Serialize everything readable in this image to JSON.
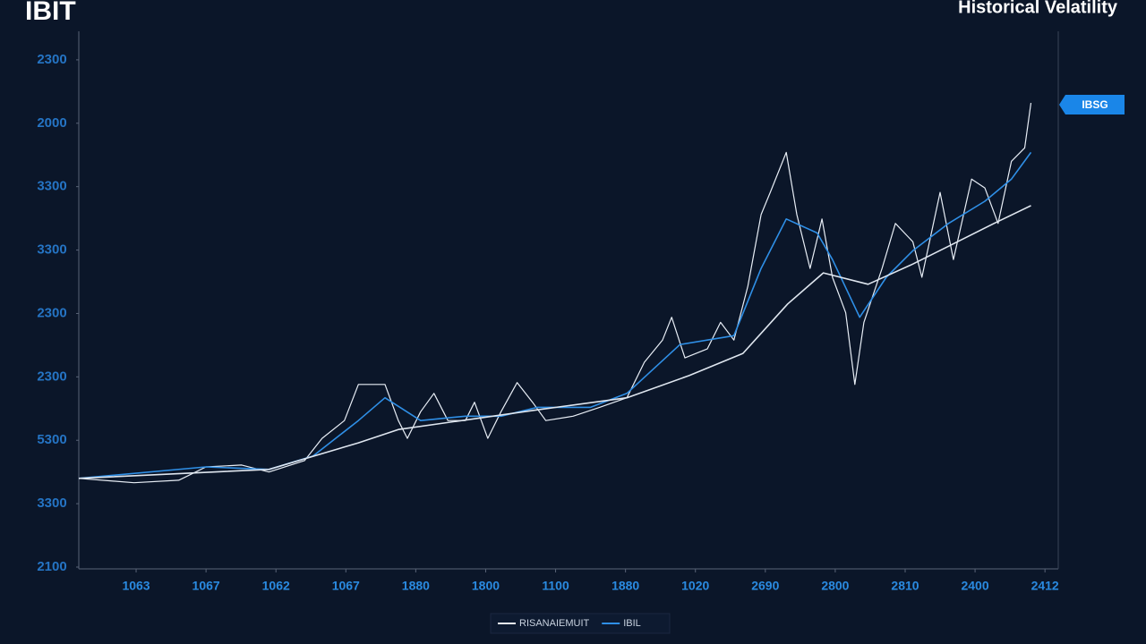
{
  "chart_data": {
    "type": "line",
    "title": "IBIT",
    "subtitle": "Historical Velatility",
    "annotation": "IBSG",
    "xlim": [
      0.18,
      14.19
    ],
    "xticks": [
      {
        "value": 1,
        "label": "1063"
      },
      {
        "value": 2,
        "label": "1067"
      },
      {
        "value": 3,
        "label": "1062"
      },
      {
        "value": 4,
        "label": "1067"
      },
      {
        "value": 5,
        "label": "1880"
      },
      {
        "value": 6,
        "label": "1800"
      },
      {
        "value": 7,
        "label": "1100"
      },
      {
        "value": 8,
        "label": "1880"
      },
      {
        "value": 9,
        "label": "1020"
      },
      {
        "value": 10,
        "label": "2690"
      },
      {
        "value": 11,
        "label": "2800"
      },
      {
        "value": 12,
        "label": "2810"
      },
      {
        "value": 13,
        "label": "2400"
      },
      {
        "value": 14,
        "label": "2412"
      }
    ],
    "ylim": [
      0,
      8.45
    ],
    "yticks": [
      {
        "value": 0,
        "label": "2100"
      },
      {
        "value": 1,
        "label": "3300"
      },
      {
        "value": 2,
        "label": "5300"
      },
      {
        "value": 3,
        "label": "2300"
      },
      {
        "value": 4,
        "label": "2300"
      },
      {
        "value": 5,
        "label": "3300"
      },
      {
        "value": 6,
        "label": "3300"
      },
      {
        "value": 7,
        "label": "2000"
      },
      {
        "value": 8,
        "label": "2300"
      }
    ],
    "series": [
      {
        "name": "RISANAIEMUIT",
        "color": "#e8eef6",
        "x": [
          0.18,
          0.97,
          1.61,
          2.0,
          2.51,
          2.9,
          3.41,
          3.66,
          3.98,
          4.18,
          4.56,
          4.75,
          4.88,
          5.07,
          5.26,
          5.46,
          5.71,
          5.84,
          6.03,
          6.22,
          6.45,
          6.67,
          6.86,
          7.25,
          7.63,
          8.02,
          8.27,
          8.53,
          8.66,
          8.85,
          9.17,
          9.36,
          9.55,
          9.75,
          9.94,
          10.07,
          10.3,
          10.45,
          10.64,
          10.81,
          10.96,
          11.15,
          11.28,
          11.41,
          11.67,
          11.86,
          12.11,
          12.24,
          12.5,
          12.69,
          12.95,
          13.14,
          13.33,
          13.52,
          13.71,
          13.8
        ],
        "values": [
          1.4,
          1.33,
          1.37,
          1.58,
          1.61,
          1.5,
          1.68,
          2.03,
          2.31,
          2.88,
          2.88,
          2.31,
          2.03,
          2.45,
          2.74,
          2.31,
          2.31,
          2.6,
          2.03,
          2.45,
          2.91,
          2.6,
          2.31,
          2.38,
          2.52,
          2.67,
          3.23,
          3.58,
          3.94,
          3.3,
          3.44,
          3.86,
          3.58,
          4.43,
          5.56,
          5.91,
          6.54,
          5.56,
          4.71,
          5.49,
          4.57,
          4.01,
          2.88,
          3.86,
          4.71,
          5.42,
          5.13,
          4.57,
          5.91,
          4.85,
          6.12,
          5.98,
          5.42,
          6.4,
          6.61,
          7.32
        ]
      },
      {
        "name": "IBIL",
        "color": "#2f8fe6",
        "x": [
          0.18,
          2.0,
          2.9,
          3.53,
          4.18,
          4.56,
          5.07,
          5.71,
          6.22,
          6.74,
          7.5,
          8.02,
          8.78,
          9.55,
          9.94,
          10.3,
          10.74,
          10.96,
          11.35,
          11.73,
          12.11,
          12.62,
          13.14,
          13.52,
          13.8
        ],
        "values": [
          1.4,
          1.58,
          1.54,
          1.75,
          2.31,
          2.67,
          2.31,
          2.38,
          2.38,
          2.52,
          2.52,
          2.74,
          3.51,
          3.65,
          4.71,
          5.49,
          5.27,
          4.85,
          3.94,
          4.57,
          4.99,
          5.42,
          5.77,
          6.12,
          6.54
        ]
      },
      {
        "color": "#dfe6ef",
        "x": [
          0.18,
          2.9,
          4.18,
          4.75,
          6.74,
          8.02,
          8.91,
          9.68,
          10.32,
          10.83,
          11.47,
          12.11,
          12.62,
          13.27,
          13.8
        ],
        "values": [
          1.4,
          1.54,
          1.96,
          2.17,
          2.48,
          2.67,
          3.02,
          3.37,
          4.15,
          4.64,
          4.46,
          4.78,
          5.06,
          5.42,
          5.7
        ]
      }
    ]
  }
}
